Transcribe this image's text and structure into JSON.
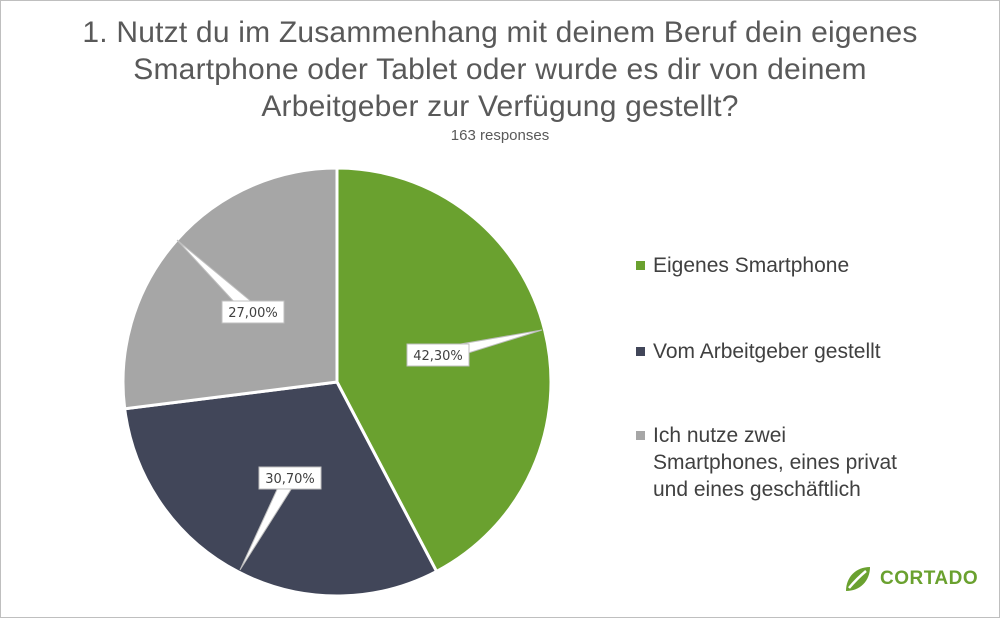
{
  "title": "1. Nutzt du im Zusammenhang  mit deinem Beruf dein eigenes Smartphone oder Tablet oder wurde es dir von deinem Arbeitgeber zur Verfügung gestellt?",
  "subtitle": "163 responses",
  "chart_data": {
    "type": "pie",
    "categories": [
      "Eigenes Smartphone",
      "Vom Arbeitgeber gestellt",
      "Ich nutze zwei Smartphones, eines privat und eines geschäftlich"
    ],
    "values": [
      42.3,
      30.7,
      27.0
    ],
    "data_labels": [
      "42,30%",
      "30,70%",
      "27,00%"
    ],
    "colors": [
      "#6aa12f",
      "#414659",
      "#a6a6a6"
    ],
    "legend_position": "right",
    "start": "12 o'clock",
    "direction": "clockwise"
  },
  "legend": [
    {
      "label": "Eigenes Smartphone",
      "color": "#6aa12f"
    },
    {
      "label": "Vom Arbeitgeber gestellt",
      "color": "#414659"
    },
    {
      "label": "Ich nutze zwei Smartphones, eines privat und eines geschäftlich",
      "color": "#a6a6a6"
    }
  ],
  "logo": {
    "text": "CORTADO",
    "icon": "leaf-icon",
    "color": "#6aa12f"
  }
}
